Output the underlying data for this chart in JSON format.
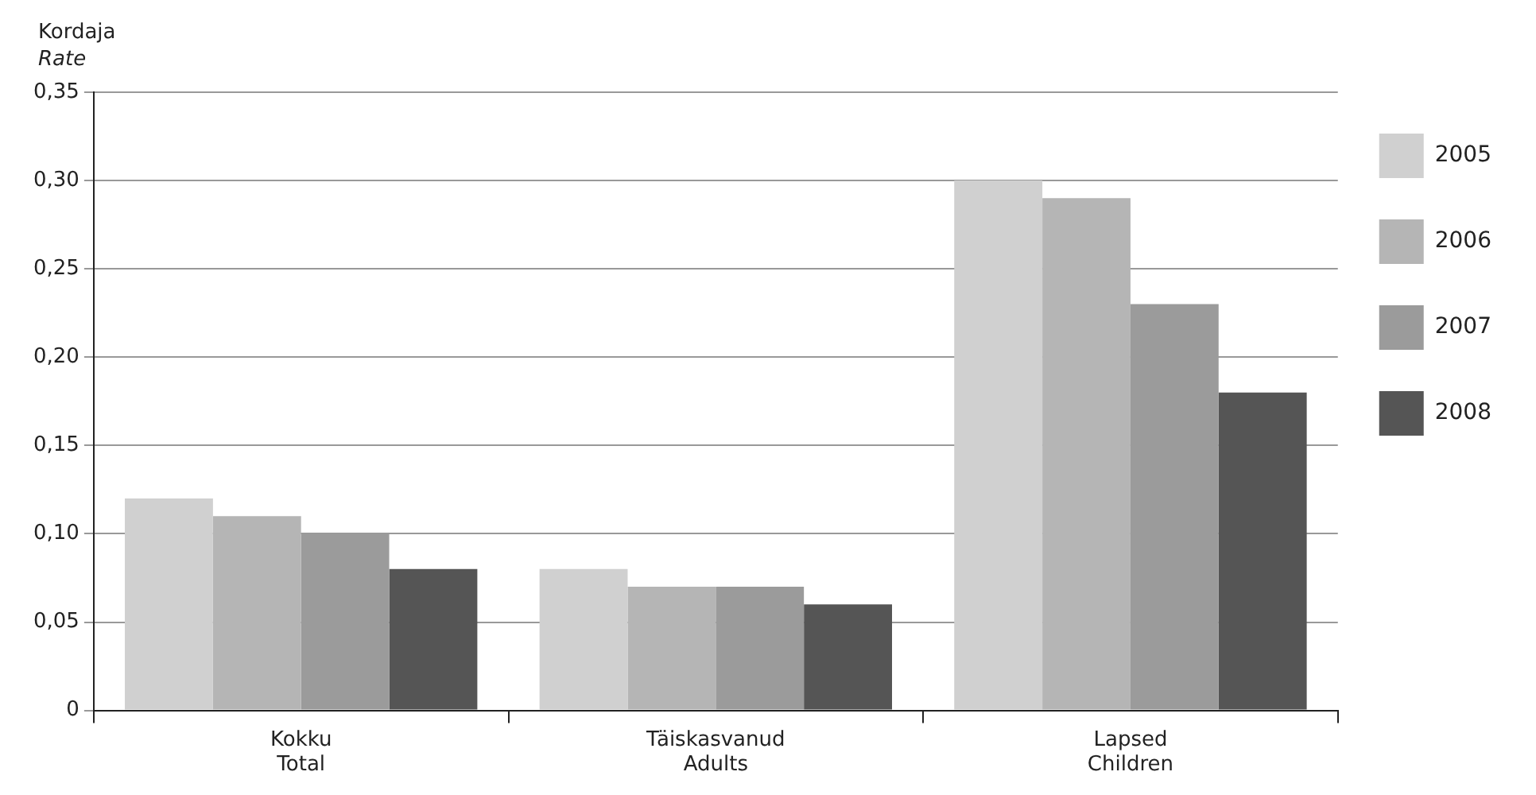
{
  "chart_data": {
    "type": "bar",
    "ylabel": "Kordaja\nRate",
    "categories": [
      "Kokku\nTotal",
      "Täiskasvanud\nAdults",
      "Lapsed\nChildren"
    ],
    "series": [
      {
        "name": "2005",
        "color": "#d0d0d0",
        "values": [
          0.12,
          0.08,
          0.3
        ]
      },
      {
        "name": "2006",
        "color": "#b5b5b5",
        "values": [
          0.11,
          0.07,
          0.29
        ]
      },
      {
        "name": "2007",
        "color": "#9b9b9b",
        "values": [
          0.1,
          0.07,
          0.23
        ]
      },
      {
        "name": "2008",
        "color": "#555555",
        "values": [
          0.08,
          0.06,
          0.18
        ]
      }
    ],
    "ylim": [
      0,
      0.35
    ],
    "yticks": [
      0,
      {
        "value": 0.05,
        "label": "0,05"
      },
      {
        "value": 0.1,
        "label": "0,10"
      },
      {
        "value": 0.15,
        "label": "0,15"
      },
      {
        "value": 0.2,
        "label": "0,20"
      },
      {
        "value": 0.25,
        "label": "0,25"
      },
      {
        "value": 0.3,
        "label": "0,30"
      },
      {
        "value": 0.35,
        "label": "0,35"
      }
    ],
    "grid": "y",
    "legend": "right"
  }
}
